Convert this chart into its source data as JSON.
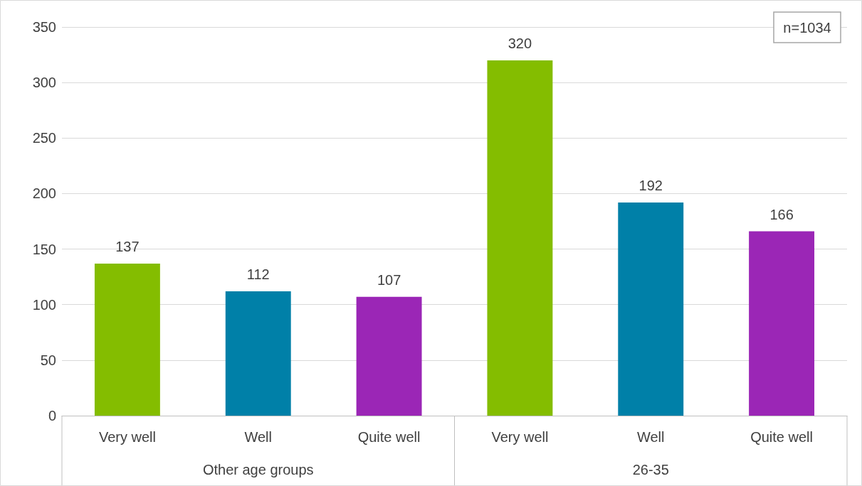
{
  "chart_data": {
    "type": "bar",
    "categories": [
      "Very well",
      "Well",
      "Quite well",
      "Very well",
      "Well",
      "Quite well"
    ],
    "values": [
      137,
      112,
      107,
      320,
      192,
      166
    ],
    "colors": [
      "#84bd00",
      "#0080a8",
      "#9b26b6",
      "#84bd00",
      "#0080a8",
      "#9b26b6"
    ],
    "ylim": [
      0,
      350
    ],
    "yticks": [
      0,
      50,
      100,
      150,
      200,
      250,
      300,
      350
    ],
    "grid": "y",
    "data_labels": true,
    "annotations": [
      "Other age groups",
      "26-35",
      "n=1034"
    ]
  }
}
